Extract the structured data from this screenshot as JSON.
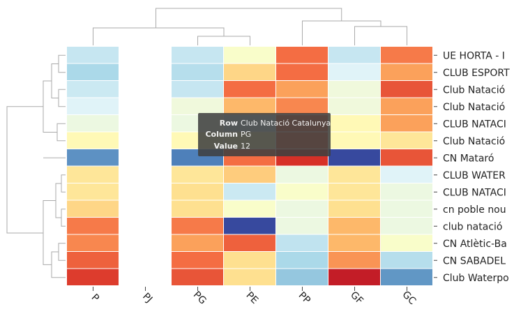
{
  "chart_data": {
    "type": "heatmap",
    "title": "",
    "xlabel": "",
    "ylabel": "",
    "columns": [
      "P",
      "PJ",
      "PG",
      "PE",
      "PP",
      "GF",
      "GC"
    ],
    "rows": [
      "UE HORTA - I",
      "CLUB ESPORT",
      "Club Natació",
      "Club Natació",
      "CLUB NATACI",
      "Club Natació",
      "CN Mataró",
      "CLUB WATER",
      "CLUB NATACI",
      "cn poble nou",
      "club natació",
      "CN Atlètic-Ba",
      "CN SABADEL",
      "Club Waterpo"
    ],
    "values": [
      [
        0.35,
        null,
        0.35,
        0.48,
        0.8,
        0.35,
        0.78
      ],
      [
        0.3,
        null,
        0.32,
        0.62,
        0.8,
        0.4,
        0.72
      ],
      [
        0.36,
        null,
        0.35,
        0.8,
        0.72,
        0.45,
        0.84
      ],
      [
        0.4,
        null,
        0.45,
        0.68,
        0.76,
        0.45,
        0.72
      ],
      [
        0.44,
        null,
        0.44,
        0.36,
        0.8,
        0.52,
        0.72
      ],
      [
        0.52,
        null,
        0.52,
        0.52,
        0.8,
        0.52,
        0.58
      ],
      [
        0.15,
        null,
        0.12,
        0.8,
        0.9,
        0.03,
        0.84
      ],
      [
        0.58,
        null,
        0.58,
        0.64,
        0.44,
        0.58,
        0.4
      ],
      [
        0.58,
        null,
        0.6,
        0.36,
        0.48,
        0.58,
        0.44
      ],
      [
        0.62,
        null,
        0.6,
        0.48,
        0.44,
        0.6,
        0.44
      ],
      [
        0.78,
        null,
        0.78,
        0.03,
        0.44,
        0.68,
        0.44
      ],
      [
        0.76,
        null,
        0.72,
        0.82,
        0.34,
        0.68,
        0.48
      ],
      [
        0.82,
        null,
        0.8,
        0.6,
        0.3,
        0.74,
        0.32
      ],
      [
        0.88,
        null,
        0.84,
        0.6,
        0.26,
        0.94,
        0.16
      ]
    ],
    "colormap": "RdYlBu_r",
    "row_dendrogram": true,
    "column_dendrogram": true,
    "legend": "none"
  },
  "tooltip": {
    "row_key": "Row",
    "row_value": "Club Natació Catalunya",
    "column_key": "Column",
    "column_value": "PG",
    "value_key": "Value",
    "value_value": "12"
  }
}
